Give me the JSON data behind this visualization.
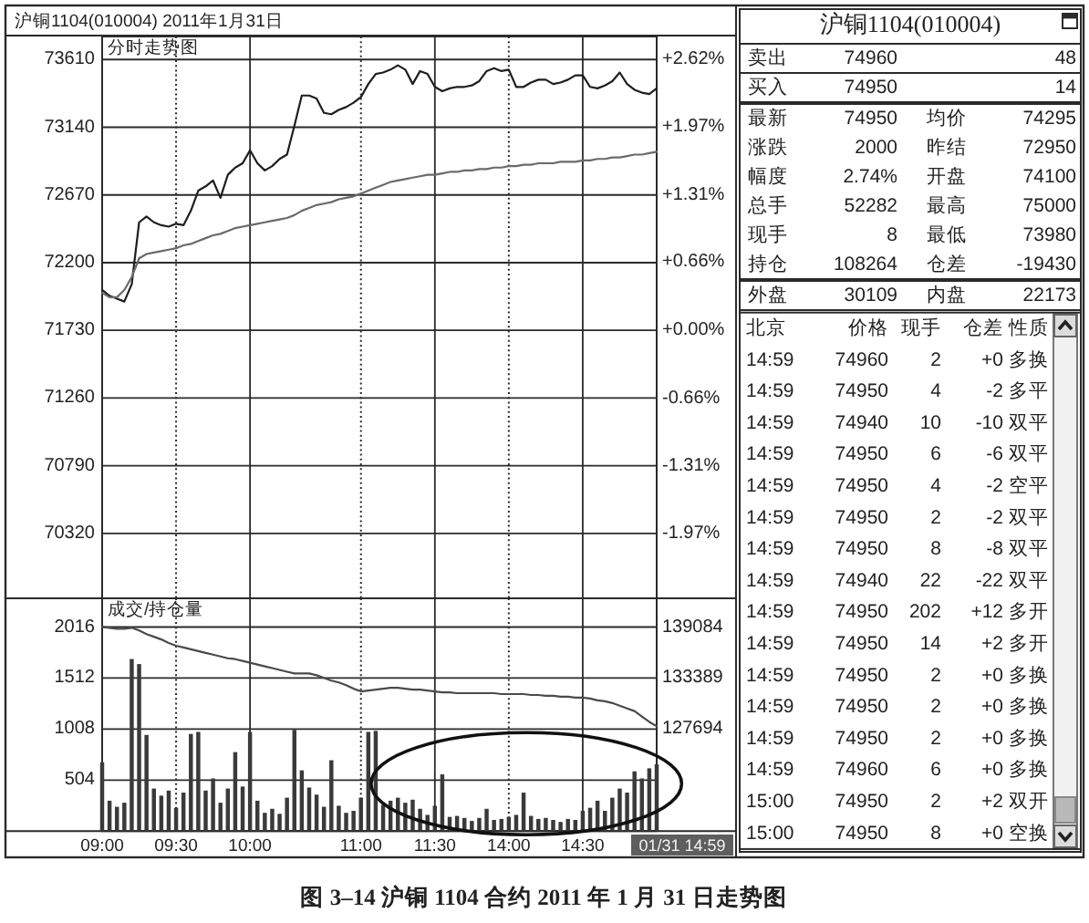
{
  "chart_data": [
    {
      "type": "line",
      "title": "沪铜1104(010004) 2011年1月31日",
      "subtitle": "分时走势图",
      "annotations": [
        "图 3–14 沪铜 1104 合约 2011 年 1 月 31 日走势图"
      ],
      "categories": [
        null,
        null,
        null,
        null,
        null,
        null,
        null,
        null,
        null,
        null,
        null,
        null,
        null,
        null,
        null,
        null,
        null,
        null,
        null,
        null,
        null,
        null,
        null,
        null,
        null,
        null,
        null,
        null,
        null,
        null,
        null,
        null,
        null,
        null,
        null,
        null,
        null,
        null,
        null,
        null,
        null,
        null,
        null,
        null,
        null,
        null,
        null,
        null,
        null,
        null,
        null,
        null,
        null,
        null,
        null,
        null,
        null,
        null,
        null,
        null,
        null,
        null,
        null,
        null,
        null,
        null,
        null,
        null,
        null,
        null,
        null,
        null,
        null,
        null,
        null,
        null
      ],
      "ylim": [
        69870,
        73770
      ],
      "yticks": [
        70320,
        70790,
        71260,
        71730,
        72200,
        72670,
        73140,
        73610
      ],
      "y2lim": [
        -2.593,
        2.844
      ],
      "y2ticks": [
        {
          "value": -1.97,
          "label": "-1.97%"
        },
        {
          "value": -1.31,
          "label": "-1.31%"
        },
        {
          "value": -0.66,
          "label": "-0.66%"
        },
        {
          "value": 0,
          "label": "+0.00%"
        },
        {
          "value": 0.66,
          "label": "+0.66%"
        },
        {
          "value": 1.31,
          "label": "+1.31%"
        },
        {
          "value": 1.97,
          "label": "+1.97%"
        },
        {
          "value": 2.62,
          "label": "+2.62%"
        }
      ],
      "grid": true,
      "series": [
        {
          "color": "#1e1e1e",
          "values": [
            72010,
            71970,
            71950,
            71930,
            72050,
            72480,
            72520,
            72480,
            72460,
            72450,
            72470,
            72460,
            72560,
            72700,
            72730,
            72770,
            72650,
            72810,
            72860,
            72890,
            72980,
            72890,
            72840,
            72870,
            72920,
            72950,
            73150,
            73360,
            73360,
            73340,
            73240,
            73230,
            73260,
            73280,
            73310,
            73350,
            73440,
            73510,
            73520,
            73540,
            73570,
            73540,
            73440,
            73530,
            73510,
            73420,
            73390,
            73410,
            73420,
            73420,
            73430,
            73460,
            73530,
            73550,
            73530,
            73540,
            73420,
            73420,
            73450,
            73470,
            73470,
            73440,
            73450,
            73470,
            73500,
            73500,
            73420,
            73410,
            73430,
            73460,
            73520,
            73440,
            73400,
            73380,
            73370,
            73410
          ]
        },
        {
          "color": "#6a6a6a",
          "values": [
            71990,
            71960,
            71960,
            72010,
            72100,
            72230,
            72260,
            72270,
            72280,
            72290,
            72300,
            72320,
            72330,
            72350,
            72370,
            72390,
            72400,
            72420,
            72440,
            72450,
            72460,
            72470,
            72480,
            72490,
            72500,
            72510,
            72530,
            72560,
            72580,
            72600,
            72610,
            72620,
            72640,
            72650,
            72660,
            72680,
            72700,
            72720,
            72740,
            72760,
            72770,
            72780,
            72790,
            72800,
            72810,
            72810,
            72820,
            72830,
            72830,
            72840,
            72840,
            72850,
            72850,
            72860,
            72860,
            72870,
            72870,
            72880,
            72880,
            72890,
            72890,
            72890,
            72900,
            72900,
            72900,
            72910,
            72910,
            72920,
            72920,
            72930,
            72930,
            72940,
            72950,
            72950,
            72960,
            72970
          ]
        }
      ]
    },
    {
      "type": "bar",
      "title": "成交/持仓量",
      "annotations": [
        "01/31 14:59"
      ],
      "categories": [
        "09:00",
        null,
        null,
        null,
        null,
        null,
        null,
        null,
        null,
        null,
        "09:30",
        null,
        null,
        null,
        null,
        null,
        null,
        null,
        null,
        null,
        "10:00",
        null,
        null,
        null,
        null,
        null,
        null,
        null,
        null,
        null,
        null,
        null,
        null,
        null,
        null,
        "11:00",
        null,
        null,
        null,
        null,
        null,
        null,
        null,
        null,
        null,
        "11:30",
        null,
        null,
        null,
        null,
        null,
        null,
        null,
        null,
        null,
        "14:00",
        null,
        null,
        null,
        null,
        null,
        null,
        null,
        null,
        null,
        "14:30",
        null,
        null,
        null,
        null,
        null,
        null,
        null,
        null,
        null,
        null
      ],
      "ylim": [
        0,
        2300
      ],
      "yticks": [
        504,
        1008,
        1512,
        2016
      ],
      "y2lim": [
        116304,
        142293
      ],
      "y2ticks": [
        127694,
        133389,
        139084
      ],
      "grid": true,
      "series": [
        {
          "type": "bar",
          "color": "#3a3a3a",
          "values": [
            680,
            300,
            240,
            280,
            1700,
            1650,
            950,
            420,
            350,
            400,
            230,
            380,
            960,
            980,
            400,
            520,
            280,
            420,
            780,
            440,
            980,
            300,
            180,
            220,
            170,
            330,
            1000,
            600,
            430,
            360,
            240,
            700,
            250,
            180,
            200,
            330,
            980,
            990,
            260,
            300,
            330,
            280,
            310,
            220,
            160,
            250,
            560,
            140,
            150,
            130,
            100,
            130,
            220,
            110,
            120,
            140,
            160,
            380,
            150,
            120,
            130,
            110,
            90,
            120,
            110,
            200,
            230,
            300,
            200,
            330,
            420,
            380,
            590,
            520,
            620,
            660
          ]
        },
        {
          "type": "line",
          "axis": "y2",
          "color": "#4a4a4a",
          "values": [
            139100,
            139000,
            138900,
            138900,
            139000,
            138700,
            138300,
            138000,
            137700,
            137300,
            137000,
            136800,
            136600,
            136400,
            136200,
            136000,
            135800,
            135600,
            135500,
            135300,
            135100,
            134900,
            134700,
            134500,
            134300,
            134100,
            133900,
            133900,
            133900,
            133700,
            133400,
            133100,
            132900,
            132600,
            132200,
            131900,
            132000,
            132100,
            132200,
            132300,
            132300,
            132200,
            132100,
            132100,
            132000,
            131900,
            131800,
            131800,
            131700,
            131700,
            131700,
            131700,
            131700,
            131700,
            131600,
            131600,
            131600,
            131600,
            131500,
            131500,
            131400,
            131400,
            131300,
            131300,
            131200,
            131200,
            131100,
            130900,
            130800,
            130600,
            130300,
            130000,
            129700,
            129100,
            128500,
            128000
          ]
        }
      ]
    },
    {
      "type": "other",
      "title": "沪铜1104(010004)",
      "annotations": [
        "卖出",
        "74960",
        "48",
        "买入",
        "74950",
        "14"
      ]
    },
    {
      "type": "other",
      "annotations": [
        "最新",
        "74950",
        "均价",
        "74295",
        "涨跌",
        "2000",
        "昨结",
        "72950",
        "幅度",
        "2.74%",
        "开盘",
        "74100",
        "总手",
        "52282",
        "最高",
        "75000",
        "现手",
        "8",
        "最低",
        "73980",
        "持仓",
        "108264",
        "仓差",
        "-19430"
      ]
    },
    {
      "type": "other",
      "annotations": [
        "外盘",
        "30109",
        "内盘",
        "22173"
      ]
    },
    {
      "type": "other",
      "annotations": [
        "北京",
        "价格",
        "现手",
        "仓差",
        "性质",
        "14:59",
        "74960",
        "2",
        "+0",
        "多换",
        "14:59",
        "74950",
        "4",
        "-2",
        "多平",
        "14:59",
        "74940",
        "10",
        "-10",
        "双平",
        "14:59",
        "74950",
        "6",
        "-6",
        "双平",
        "14:59",
        "74950",
        "4",
        "-2",
        "空平",
        "14:59",
        "74950",
        "2",
        "-2",
        "双平",
        "14:59",
        "74950",
        "8",
        "-8",
        "双平",
        "14:59",
        "74940",
        "22",
        "-22",
        "双平",
        "14:59",
        "74950",
        "202",
        "+12",
        "多开",
        "14:59",
        "74950",
        "14",
        "+2",
        "多开",
        "14:59",
        "74950",
        "2",
        "+0",
        "多换",
        "14:59",
        "74950",
        "2",
        "+0",
        "多换",
        "14:59",
        "74950",
        "2",
        "+0",
        "多换",
        "14:59",
        "74960",
        "6",
        "+0",
        "多换",
        "15:00",
        "74950",
        "2",
        "+2",
        "双开",
        "15:00",
        "74950",
        "8",
        "+0",
        "空换"
      ]
    }
  ]
}
